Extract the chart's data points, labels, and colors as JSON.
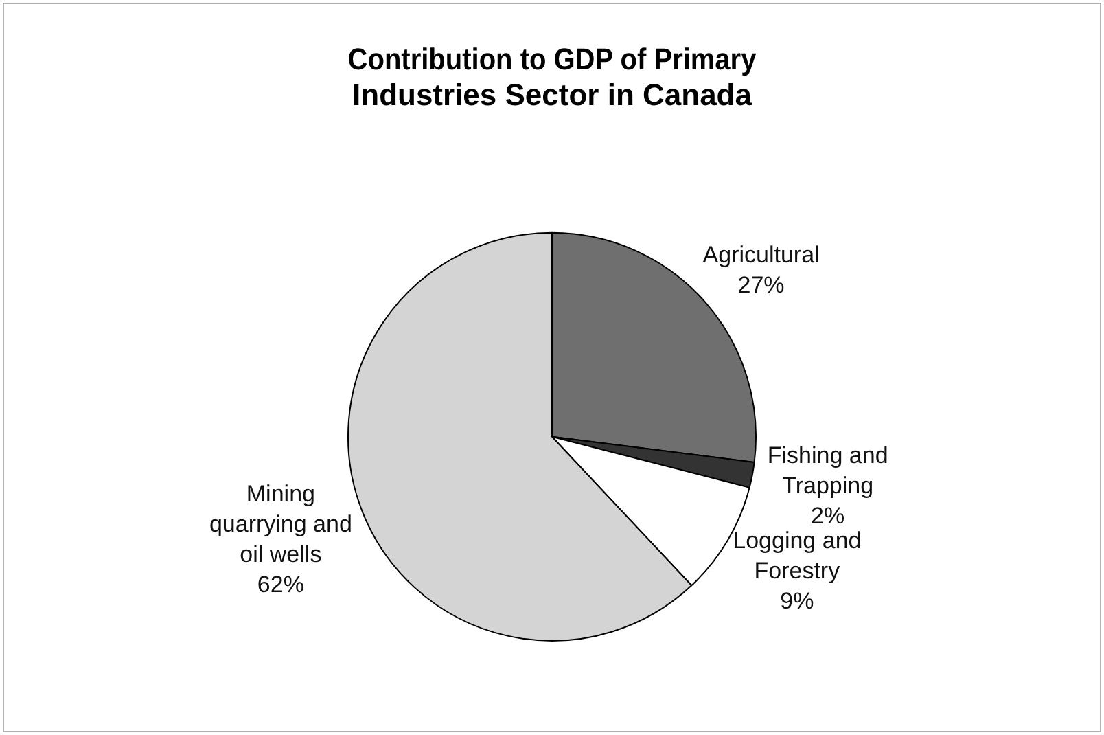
{
  "chart_data": {
    "type": "pie",
    "title": "Contribution to GDP of Primary Industries Sector in Canada",
    "categories": [
      "Agricultural",
      "Fishing and Trapping",
      "Logging and Forestry",
      "Mining quarrying and oil wells"
    ],
    "values": [
      27,
      2,
      9,
      62
    ],
    "colors": [
      "#6f6f6f",
      "#333333",
      "#ffffff",
      "#d4d4d4"
    ],
    "value_labels": [
      "27%",
      "2%",
      "9%",
      "62%"
    ],
    "legend": false
  }
}
